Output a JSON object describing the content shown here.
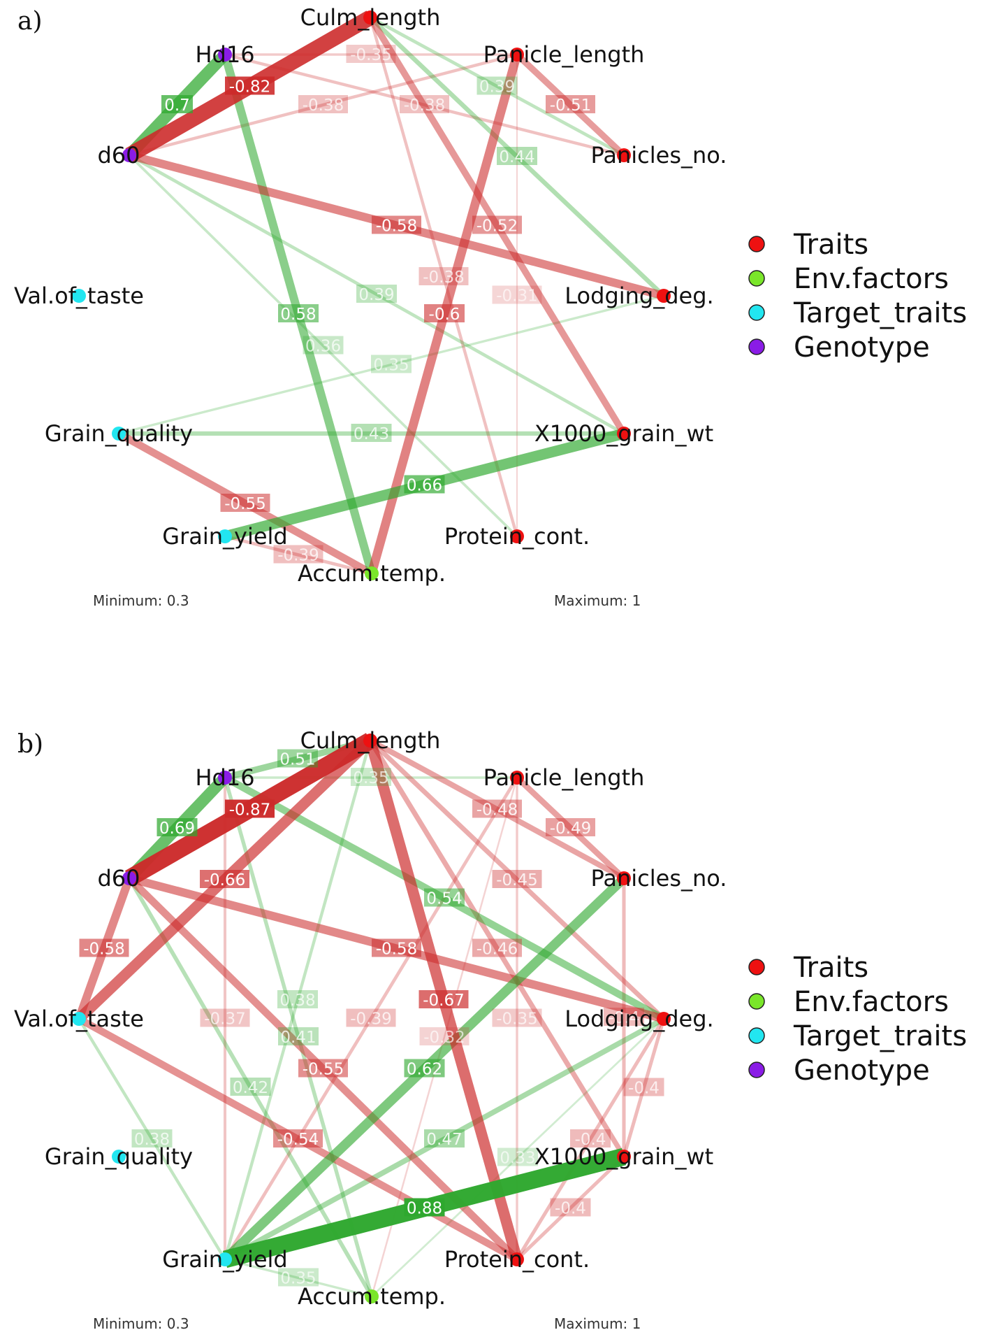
{
  "colors": {
    "Traits": "#ee1111",
    "Env.factors": "#7ae62a",
    "Target_traits": "#22e6f0",
    "Genotype": "#8a1ce6",
    "positive": "#2ea82e",
    "negative": "#cc2a2a"
  },
  "legend": [
    {
      "label": "Traits",
      "group": "Traits"
    },
    {
      "label": "Env.factors",
      "group": "Env.factors"
    },
    {
      "label": "Target_traits",
      "group": "Target_traits"
    },
    {
      "label": "Genotype",
      "group": "Genotype"
    }
  ],
  "nodes": [
    {
      "id": "Culm_length",
      "label": "Culm_length",
      "group": "Traits"
    },
    {
      "id": "Hd16",
      "label": "Hd16",
      "group": "Genotype"
    },
    {
      "id": "Panicle_length",
      "label": "Panicle_length",
      "group": "Traits"
    },
    {
      "id": "d60",
      "label": "d60",
      "group": "Genotype"
    },
    {
      "id": "Panicles_no",
      "label": "Panicles_no.",
      "group": "Traits"
    },
    {
      "id": "Val_of_taste",
      "label": "Val.of_taste",
      "group": "Target_traits"
    },
    {
      "id": "Lodging_deg",
      "label": "Lodging_deg.",
      "group": "Traits"
    },
    {
      "id": "Grain_quality",
      "label": "Grain_quality",
      "group": "Target_traits"
    },
    {
      "id": "X1000_grain_wt",
      "label": "X1000_grain_wt",
      "group": "Traits"
    },
    {
      "id": "Grain_yield",
      "label": "Grain_yield",
      "group": "Target_traits"
    },
    {
      "id": "Protein_cont",
      "label": "Protein_cont.",
      "group": "Traits"
    },
    {
      "id": "Accum_temp",
      "label": "Accum.temp.",
      "group": "Env.factors"
    }
  ],
  "panels": [
    {
      "letter": "a)",
      "minimum": "Minimum: 0.3",
      "maximum": "Maximum: 1",
      "edges": [
        {
          "source": "d60",
          "target": "Culm_length",
          "value": -0.82
        },
        {
          "source": "d60",
          "target": "Hd16",
          "value": 0.7
        },
        {
          "source": "Hd16",
          "target": "Accum_temp",
          "value": 0.58
        },
        {
          "source": "d60",
          "target": "Lodging_deg",
          "value": -0.58
        },
        {
          "source": "Panicle_length",
          "target": "Accum_temp",
          "value": -0.6
        },
        {
          "source": "Culm_length",
          "target": "X1000_grain_wt",
          "value": -0.52
        },
        {
          "source": "Grain_yield",
          "target": "X1000_grain_wt",
          "value": 0.66
        },
        {
          "source": "Grain_quality",
          "target": "Accum_temp",
          "value": -0.55
        },
        {
          "source": "Panicle_length",
          "target": "Panicles_no",
          "value": -0.51
        },
        {
          "source": "Culm_length",
          "target": "Lodging_deg",
          "value": 0.44
        },
        {
          "source": "Grain_quality",
          "target": "X1000_grain_wt",
          "value": 0.43
        },
        {
          "source": "Culm_length",
          "target": "Panicles_no",
          "value": 0.39
        },
        {
          "source": "Hd16",
          "target": "Panicle_length",
          "value": -0.35
        },
        {
          "source": "Hd16",
          "target": "Panicles_no",
          "value": -0.38
        },
        {
          "source": "d60",
          "target": "Panicle_length",
          "value": -0.38
        },
        {
          "source": "d60",
          "target": "X1000_grain_wt",
          "value": 0.39
        },
        {
          "source": "d60",
          "target": "Protein_cont",
          "value": 0.36
        },
        {
          "source": "Culm_length",
          "target": "Protein_cont",
          "value": -0.38
        },
        {
          "source": "Grain_quality",
          "target": "Lodging_deg",
          "value": 0.35
        },
        {
          "source": "Grain_yield",
          "target": "Accum_temp",
          "value": -0.39
        },
        {
          "source": "Protein_cont",
          "target": "Panicle_length",
          "value": -0.31
        }
      ]
    },
    {
      "letter": "b)",
      "minimum": "Minimum: 0.3",
      "maximum": "Maximum: 1",
      "edges": [
        {
          "source": "d60",
          "target": "Culm_length",
          "value": -0.87
        },
        {
          "source": "d60",
          "target": "Hd16",
          "value": 0.69
        },
        {
          "source": "Hd16",
          "target": "Culm_length",
          "value": 0.51
        },
        {
          "source": "Val_of_taste",
          "target": "Culm_length",
          "value": -0.66
        },
        {
          "source": "d60",
          "target": "Val_of_taste",
          "value": -0.58
        },
        {
          "source": "d60",
          "target": "Lodging_deg",
          "value": -0.58
        },
        {
          "source": "Culm_length",
          "target": "Protein_cont",
          "value": -0.67
        },
        {
          "source": "Hd16",
          "target": "Lodging_deg",
          "value": 0.54
        },
        {
          "source": "Grain_yield",
          "target": "Panicles_no",
          "value": 0.62
        },
        {
          "source": "Grain_yield",
          "target": "X1000_grain_wt",
          "value": 0.88
        },
        {
          "source": "d60",
          "target": "Protein_cont",
          "value": -0.55
        },
        {
          "source": "Val_of_taste",
          "target": "Protein_cont",
          "value": -0.54
        },
        {
          "source": "Culm_length",
          "target": "X1000_grain_wt",
          "value": -0.46
        },
        {
          "source": "Panicles_no",
          "target": "X1000_grain_wt",
          "value": -0.4
        },
        {
          "source": "Panicle_length",
          "target": "Panicles_no",
          "value": -0.49
        },
        {
          "source": "Culm_length",
          "target": "Panicles_no",
          "value": -0.48
        },
        {
          "source": "Culm_length",
          "target": "Lodging_deg",
          "value": -0.45
        },
        {
          "source": "Grain_yield",
          "target": "Lodging_deg",
          "value": 0.47
        },
        {
          "source": "Hd16",
          "target": "Accum_temp",
          "value": 0.41
        },
        {
          "source": "Culm_length",
          "target": "Grain_yield",
          "value": 0.38
        },
        {
          "source": "d60",
          "target": "Accum_temp",
          "value": 0.42
        },
        {
          "source": "Panicle_length",
          "target": "Grain_yield",
          "value": -0.39
        },
        {
          "source": "Hd16",
          "target": "Grain_yield",
          "value": -0.37
        },
        {
          "source": "Val_of_taste",
          "target": "Grain_yield",
          "value": 0.38
        },
        {
          "source": "Lodging_deg",
          "target": "Protein_cont",
          "value": -0.4
        },
        {
          "source": "X1000_grain_wt",
          "target": "Protein_cont",
          "value": -0.4
        },
        {
          "source": "Lodging_deg",
          "target": "X1000_grain_wt",
          "value": -0.4
        },
        {
          "source": "Grain_yield",
          "target": "Accum_temp",
          "value": 0.35
        },
        {
          "source": "Panicle_length",
          "target": "Protein_cont",
          "value": -0.35
        },
        {
          "source": "Lodging_deg",
          "target": "Accum_temp",
          "value": 0.33
        },
        {
          "source": "Hd16",
          "target": "Panicle_length",
          "value": 0.35
        },
        {
          "source": "Panicle_length",
          "target": "Accum_temp",
          "value": -0.32
        }
      ]
    }
  ]
}
